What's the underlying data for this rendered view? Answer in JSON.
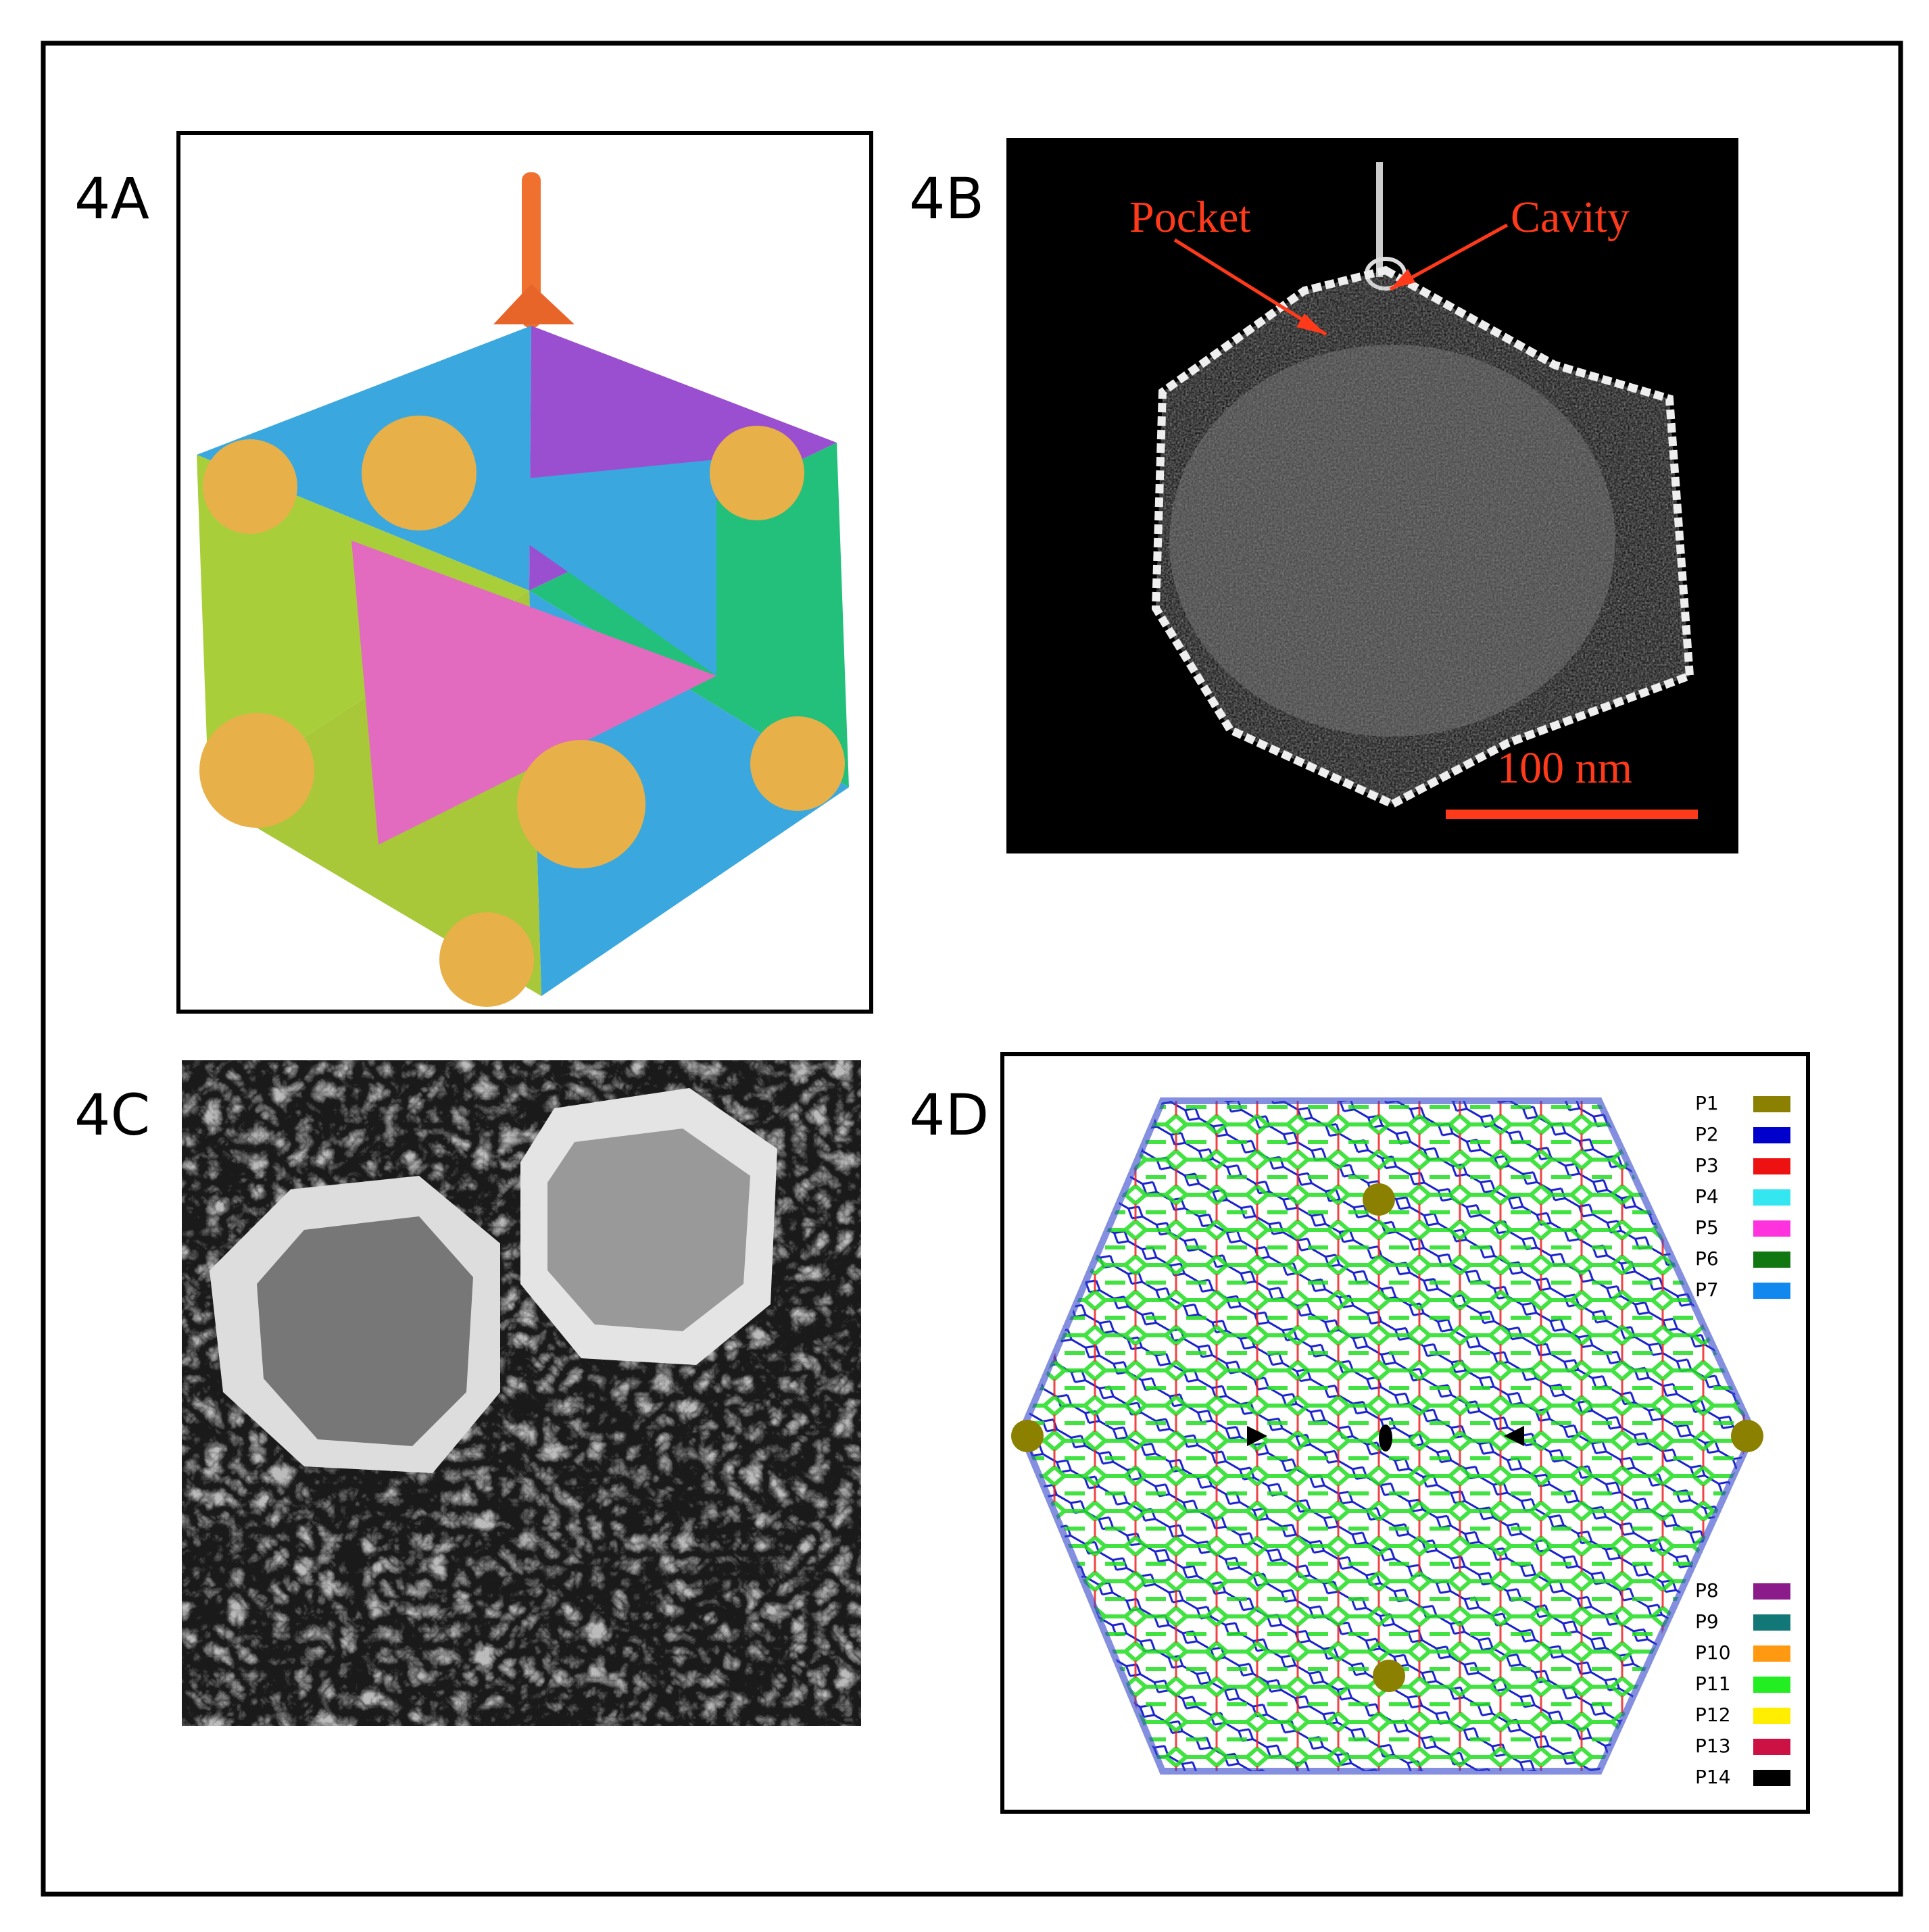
{
  "panels": [
    {
      "label": "4A"
    },
    {
      "label": "4B",
      "annotations": [
        "Pocket",
        "Cavity"
      ],
      "scale_bar": "100 nm"
    },
    {
      "label": "4C"
    },
    {
      "label": "4D",
      "legend": [
        {
          "name": "P1",
          "color": "#8b8000"
        },
        {
          "name": "P2",
          "color": "#0000cc"
        },
        {
          "name": "P3",
          "color": "#ee1111"
        },
        {
          "name": "P4",
          "color": "#33e6f0"
        },
        {
          "name": "P5",
          "color": "#ff33dd"
        },
        {
          "name": "P6",
          "color": "#117711"
        },
        {
          "name": "P7",
          "color": "#1188ee"
        },
        {
          "name": "P8",
          "color": "#8b1a8b"
        },
        {
          "name": "P9",
          "color": "#117777"
        },
        {
          "name": "P10",
          "color": "#ff9911"
        },
        {
          "name": "P11",
          "color": "#22ee22"
        },
        {
          "name": "P12",
          "color": "#ffee00"
        },
        {
          "name": "P13",
          "color": "#cc1144"
        },
        {
          "name": "P14",
          "color": "#000000"
        }
      ]
    }
  ]
}
